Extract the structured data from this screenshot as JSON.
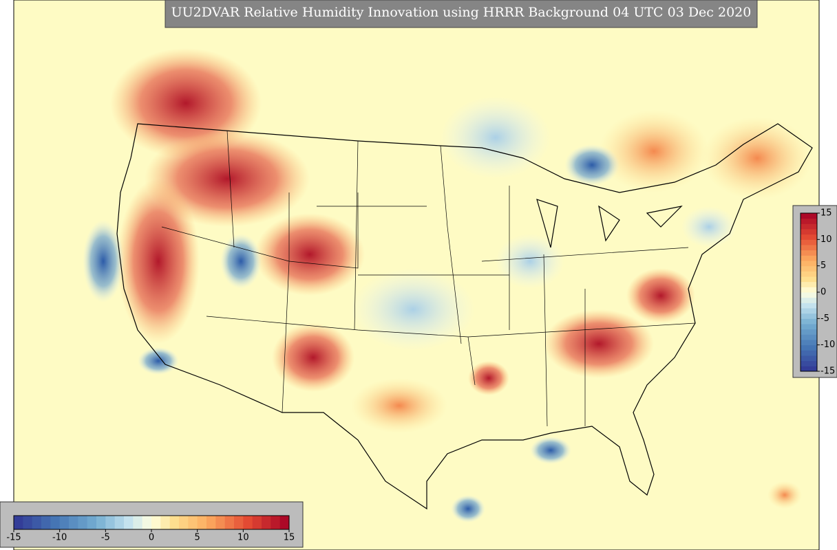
{
  "title": "UU2DVAR Relative Humidity Innovation using HRRR Background 04 UTC 03 Dec 2020",
  "colorbar": {
    "range": [
      -15,
      15
    ],
    "ticks": [
      -15,
      -10,
      -5,
      0,
      5,
      10,
      15
    ]
  }
}
